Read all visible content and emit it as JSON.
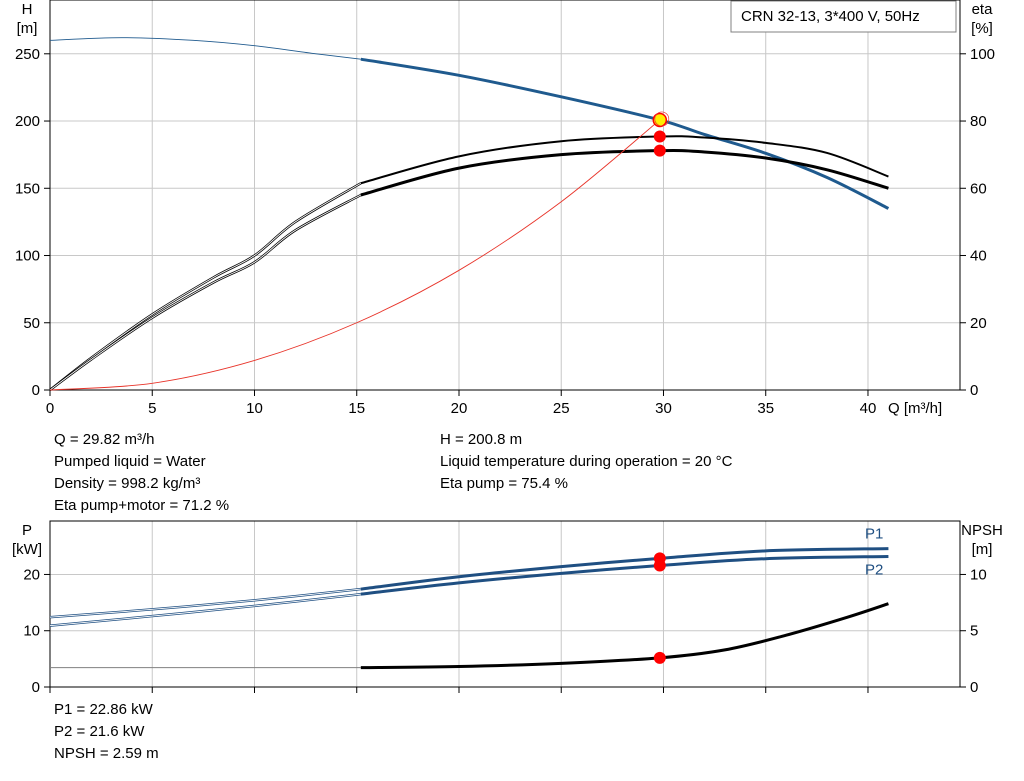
{
  "legend_box": "CRN 32-13, 3*400 V, 50Hz",
  "info_top_left": [
    "Q = 29.82 m³/h",
    "Pumped liquid = Water",
    "Density = 998.2 kg/m³",
    "Eta pump+motor = 71.2 %"
  ],
  "info_top_right": [
    "H = 200.8 m",
    "Liquid temperature during operation = 20 °C",
    "Eta pump = 75.4 %"
  ],
  "info_bottom": [
    "P1 = 22.86 kW",
    "P2 = 21.6 kW",
    "NPSH = 2.59 m"
  ],
  "colors": {
    "head": "#1f5a8e",
    "power": "#1f4f82",
    "eta": "#000000",
    "system": "#e8342a",
    "point": "#ff0000",
    "duty": "#ffee00",
    "grid": "#c8c8c8"
  },
  "chart_data": [
    {
      "type": "line",
      "name": "pump-curve",
      "xlabel": "Q [m³/h]",
      "ylabel": [
        "H",
        "[m]"
      ],
      "ylabel_right": [
        "eta",
        "[%]"
      ],
      "xlim": [
        0,
        44.5
      ],
      "ylim": [
        0,
        290
      ],
      "ylim_right": [
        0,
        116
      ],
      "xticks": [
        0,
        5,
        10,
        15,
        20,
        25,
        30,
        35,
        40
      ],
      "yticks": [
        0,
        50,
        100,
        150,
        200,
        250
      ],
      "yticks_right": [
        0,
        20,
        40,
        60,
        80,
        100
      ],
      "grid": true,
      "operating_range_start": 15.2,
      "series": [
        {
          "key": "H",
          "axis": "left",
          "unit": "m",
          "x": [
            0,
            3.5,
            7,
            10,
            13,
            15.2,
            20,
            25,
            29.82,
            32,
            35,
            38,
            41
          ],
          "y": [
            260,
            262,
            260,
            256,
            250,
            246,
            234,
            218,
            200.8,
            190,
            176,
            158,
            135
          ]
        },
        {
          "key": "eta_pump",
          "axis": "right",
          "unit": "%",
          "x": [
            0,
            2,
            5,
            8,
            10,
            12,
            15.2,
            20,
            25,
            29.82,
            32,
            35,
            38,
            41
          ],
          "y": [
            0,
            9.5,
            22.5,
            33.5,
            40,
            50,
            61.5,
            69.5,
            74,
            75.4,
            75.1,
            73.5,
            70.5,
            63.5
          ]
        },
        {
          "key": "eta_pump_motor",
          "axis": "right",
          "unit": "%",
          "x": [
            0,
            2,
            5,
            8,
            10,
            12,
            15.2,
            20,
            25,
            29.82,
            32,
            35,
            38,
            41
          ],
          "y": [
            0,
            9,
            21.5,
            32,
            38,
            47.5,
            58,
            66,
            70,
            71.2,
            70.8,
            69,
            65.5,
            60
          ]
        },
        {
          "key": "system",
          "axis": "left",
          "unit": "m",
          "x": [
            0,
            5,
            10,
            15,
            20,
            25,
            29.82
          ],
          "y": [
            0,
            5,
            22,
            50,
            89,
            140,
            200.8
          ]
        }
      ],
      "duty_point": {
        "x": 29.82,
        "H": 200.8,
        "eta_pump": 75.4,
        "eta_pump_motor": 71.2
      }
    },
    {
      "type": "line",
      "name": "power-npsh-curve",
      "ylabel": [
        "P",
        "[kW]"
      ],
      "ylabel_right": [
        "NPSH",
        "[m]"
      ],
      "xlim": [
        0,
        44.5
      ],
      "ylim": [
        0,
        29.5
      ],
      "ylim_right": [
        0,
        14.75
      ],
      "yticks": [
        0,
        10,
        20
      ],
      "yticks_right": [
        0,
        5,
        10
      ],
      "grid": true,
      "series": [
        {
          "key": "P1",
          "name": "P1",
          "axis": "left",
          "unit": "kW",
          "x": [
            0,
            5,
            10,
            15.2,
            20,
            25,
            29.82,
            35,
            41
          ],
          "y": [
            12.4,
            13.8,
            15.4,
            17.4,
            19.6,
            21.4,
            22.86,
            24.2,
            24.6
          ]
        },
        {
          "key": "P2",
          "name": "P2",
          "axis": "left",
          "unit": "kW",
          "x": [
            0,
            5,
            10,
            15.2,
            20,
            25,
            29.82,
            35,
            41
          ],
          "y": [
            10.9,
            12.6,
            14.4,
            16.5,
            18.5,
            20.2,
            21.6,
            22.8,
            23.2
          ]
        },
        {
          "key": "NPSH",
          "axis": "right",
          "unit": "m",
          "x": [
            0,
            15.2,
            20,
            25,
            29.82,
            33,
            36,
            39,
            41
          ],
          "y": [
            1.72,
            1.72,
            1.82,
            2.1,
            2.59,
            3.3,
            4.6,
            6.2,
            7.4
          ]
        }
      ],
      "duty_point": {
        "x": 29.82,
        "P1": 22.86,
        "P2": 21.6,
        "NPSH": 2.59
      }
    }
  ]
}
